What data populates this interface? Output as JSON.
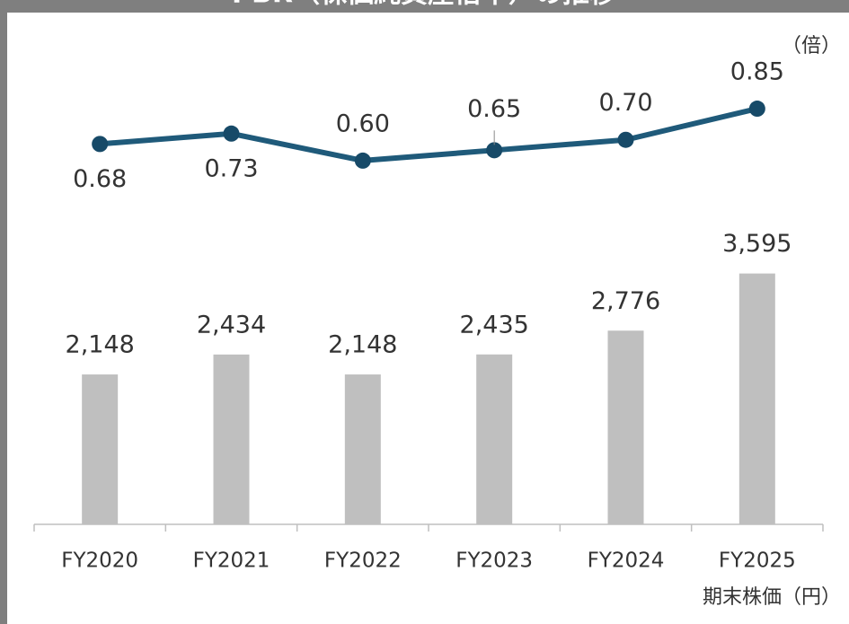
{
  "chart_data": {
    "type": "bar_line",
    "title": "PBR（株価純資産倍率）の推移",
    "categories": [
      "FY2020",
      "FY2021",
      "FY2022",
      "FY2023",
      "FY2024",
      "FY2025"
    ],
    "series": [
      {
        "name": "期末株価（円）",
        "type": "bar",
        "color": "#bfbfbf",
        "axis": "y",
        "values": [
          2148,
          2434,
          2148,
          2435,
          2776,
          3595
        ],
        "value_labels": [
          "2,148",
          "2,434",
          "2,148",
          "2,435",
          "2,776",
          "3,595"
        ]
      },
      {
        "name": "（倍）",
        "type": "line",
        "color": "#1f5a7a",
        "axis": "y2",
        "values": [
          0.68,
          0.73,
          0.6,
          0.65,
          0.7,
          0.85
        ],
        "value_labels": [
          "0.68",
          "0.73",
          "0.60",
          "0.65",
          "0.70",
          "0.85"
        ]
      }
    ],
    "ylim": [
      0,
      7000
    ],
    "y2lim": [
      -1.15,
      1.2
    ]
  }
}
